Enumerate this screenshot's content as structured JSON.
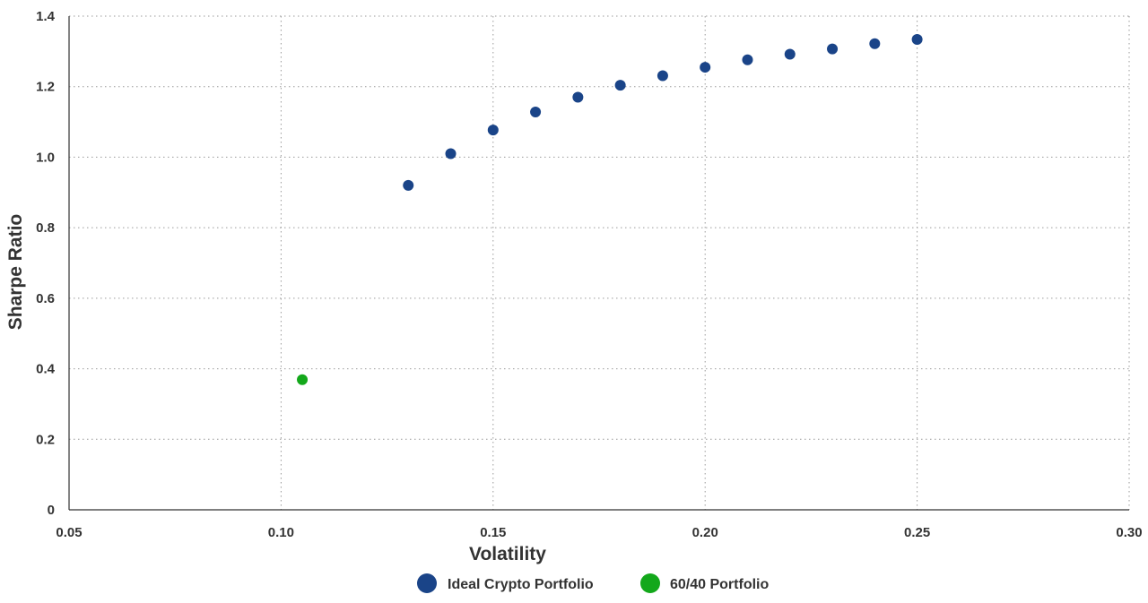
{
  "chart_data": {
    "type": "scatter",
    "title": "",
    "xlabel": "Volatility",
    "ylabel": "Sharpe Ratio",
    "xlim": [
      0.05,
      0.3
    ],
    "ylim": [
      0,
      1.4
    ],
    "x_ticks": [
      "0.05",
      "0.10",
      "0.15",
      "0.20",
      "0.25",
      "0.30"
    ],
    "y_ticks": [
      "0",
      "0.2",
      "0.4",
      "0.6",
      "0.8",
      "1.0",
      "1.2",
      "1.4"
    ],
    "grid": true,
    "legend_position": "bottom-center",
    "series": [
      {
        "name": "Ideal Crypto Portfolio",
        "color": "#1a4488",
        "x": [
          0.13,
          0.14,
          0.15,
          0.16,
          0.17,
          0.18,
          0.19,
          0.2,
          0.21,
          0.22,
          0.23,
          0.24,
          0.25
        ],
        "y": [
          0.92,
          1.01,
          1.077,
          1.128,
          1.17,
          1.204,
          1.231,
          1.255,
          1.276,
          1.292,
          1.307,
          1.322,
          1.334
        ]
      },
      {
        "name": "60/40 Portfolio",
        "color": "#13a81b",
        "x": [
          0.105
        ],
        "y": [
          0.369
        ]
      }
    ]
  }
}
